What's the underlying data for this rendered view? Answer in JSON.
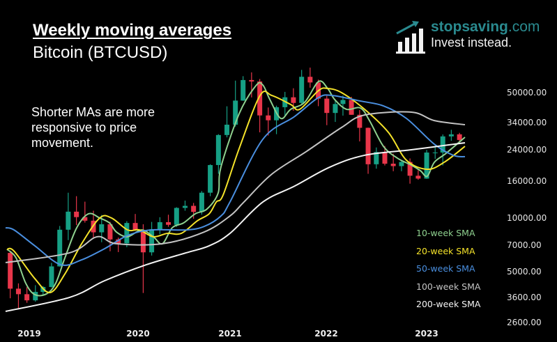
{
  "header": {
    "title": "Weekly moving averages",
    "subtitle": "Bitcoin (BTCUSD)",
    "note": "Shorter MAs are more responsive to price movement."
  },
  "logo": {
    "brand": "stopsaving",
    "domain": ".com",
    "tagline": "Invest instead.",
    "icon": "bar-chart-arrow-icon",
    "color": "#2a8a8f"
  },
  "chart_data": {
    "type": "candlestick+line",
    "title": "Weekly moving averages",
    "yscale": "log",
    "ylim": [
      2300,
      75000
    ],
    "xlim": [
      "2018-10-29",
      "2023-06-04"
    ],
    "y_ticks": [
      "50000.00",
      "34000.00",
      "24000.00",
      "16000.00",
      "10000.00",
      "7000.00",
      "5000.00",
      "3600.00",
      "2600.00"
    ],
    "x_ticks": [
      "2019",
      "2020",
      "2021",
      "2022",
      "2023"
    ],
    "grid": false,
    "legend_position": "bottom-right",
    "colors": {
      "up": "#16a085",
      "down": "#e8364a"
    },
    "candles": [
      [
        "2018-11-15",
        6365,
        6550,
        3550,
        4017
      ],
      [
        "2018-12-15",
        4017,
        4300,
        3130,
        3742
      ],
      [
        "2019-01-15",
        3742,
        4100,
        3350,
        3457
      ],
      [
        "2019-02-15",
        3457,
        4200,
        3400,
        3854
      ],
      [
        "2019-03-15",
        3854,
        4150,
        3700,
        4105
      ],
      [
        "2019-04-15",
        4105,
        5600,
        4080,
        5350
      ],
      [
        "2019-05-15",
        5350,
        9000,
        5330,
        8574
      ],
      [
        "2019-06-15",
        8574,
        13800,
        7500,
        10817
      ],
      [
        "2019-07-15",
        10817,
        13200,
        9100,
        10085
      ],
      [
        "2019-08-15",
        10085,
        12300,
        9400,
        9630
      ],
      [
        "2019-09-15",
        9630,
        10950,
        7700,
        8293
      ],
      [
        "2019-10-15",
        8293,
        10370,
        7300,
        9199
      ],
      [
        "2019-11-15",
        9199,
        9500,
        6500,
        7569
      ],
      [
        "2019-12-15",
        7569,
        7750,
        6430,
        7193
      ],
      [
        "2020-01-15",
        7193,
        9570,
        6850,
        9350
      ],
      [
        "2020-02-15",
        9350,
        10500,
        8450,
        8543
      ],
      [
        "2020-03-15",
        8543,
        9200,
        3800,
        6410
      ],
      [
        "2020-04-15",
        6410,
        9480,
        6150,
        8624
      ],
      [
        "2020-05-15",
        8624,
        10070,
        8100,
        9446
      ],
      [
        "2020-06-15",
        9446,
        10400,
        8900,
        9135
      ],
      [
        "2020-07-15",
        9135,
        11450,
        8900,
        11351
      ],
      [
        "2020-08-15",
        11351,
        12470,
        10950,
        11655
      ],
      [
        "2020-09-15",
        11655,
        12100,
        9880,
        10779
      ],
      [
        "2020-10-15",
        10779,
        14100,
        10400,
        13805
      ],
      [
        "2020-11-15",
        13805,
        19900,
        13200,
        19700
      ],
      [
        "2020-12-15",
        19700,
        29300,
        17600,
        28990
      ],
      [
        "2021-01-15",
        28990,
        41950,
        28130,
        33110
      ],
      [
        "2021-02-15",
        33110,
        58350,
        32300,
        45140
      ],
      [
        "2021-03-15",
        45140,
        61800,
        45000,
        58800
      ],
      [
        "2021-04-15",
        58800,
        64900,
        47000,
        57700
      ],
      [
        "2021-05-15",
        57700,
        59600,
        30000,
        37300
      ],
      [
        "2021-06-15",
        37300,
        41300,
        28800,
        35040
      ],
      [
        "2021-07-15",
        35040,
        42300,
        29300,
        41460
      ],
      [
        "2021-08-15",
        41460,
        50500,
        37300,
        47100
      ],
      [
        "2021-09-15",
        47100,
        52900,
        39600,
        43800
      ],
      [
        "2021-10-15",
        43800,
        67000,
        43300,
        61300
      ],
      [
        "2021-11-15",
        61300,
        69000,
        53300,
        57000
      ],
      [
        "2021-12-15",
        57000,
        59100,
        42000,
        46300
      ],
      [
        "2022-01-15",
        46300,
        48000,
        32900,
        38500
      ],
      [
        "2022-02-15",
        38500,
        45800,
        34300,
        43200
      ],
      [
        "2022-03-15",
        43200,
        48200,
        37200,
        45500
      ],
      [
        "2022-04-15",
        45500,
        47400,
        37600,
        37600
      ],
      [
        "2022-05-15",
        37600,
        40000,
        26700,
        31800
      ],
      [
        "2022-06-15",
        31800,
        31900,
        17600,
        19900
      ],
      [
        "2022-07-15",
        19900,
        24700,
        18800,
        23300
      ],
      [
        "2022-08-15",
        23300,
        25200,
        19600,
        20050
      ],
      [
        "2022-09-15",
        20050,
        22800,
        18200,
        19430
      ],
      [
        "2022-10-15",
        19430,
        20950,
        18200,
        20500
      ],
      [
        "2022-11-15",
        20500,
        21450,
        15500,
        17170
      ],
      [
        "2022-12-15",
        17170,
        18400,
        16300,
        16550
      ],
      [
        "2023-01-15",
        16550,
        23950,
        16500,
        23140
      ],
      [
        "2023-02-15",
        23140,
        25250,
        21350,
        23150
      ],
      [
        "2023-03-15",
        23150,
        29200,
        19600,
        28480
      ],
      [
        "2023-04-15",
        28480,
        31000,
        26900,
        29250
      ],
      [
        "2023-05-15",
        29250,
        29800,
        25800,
        27200
      ]
    ],
    "series": [
      {
        "name": "10-week SMA",
        "color": "#8fd18f",
        "points": [
          [
            "2018-11-03",
            6670
          ],
          [
            "2018-12-06",
            5980
          ],
          [
            "2019-01-11",
            4300
          ],
          [
            "2019-02-13",
            3720
          ],
          [
            "2019-03-28",
            3760
          ],
          [
            "2019-04-30",
            4300
          ],
          [
            "2019-06-03",
            5980
          ],
          [
            "2019-07-16",
            8790
          ],
          [
            "2019-08-28",
            10520
          ],
          [
            "2019-10-08",
            9970
          ],
          [
            "2019-11-13",
            9350
          ],
          [
            "2019-12-08",
            8330
          ],
          [
            "2020-01-18",
            7830
          ],
          [
            "2020-03-09",
            8550
          ],
          [
            "2020-04-21",
            7830
          ],
          [
            "2020-05-24",
            7160
          ],
          [
            "2020-06-29",
            8790
          ],
          [
            "2020-08-09",
            9350
          ],
          [
            "2020-09-21",
            10520
          ],
          [
            "2020-11-03",
            11190
          ],
          [
            "2020-12-14",
            13760
          ],
          [
            "2020-12-24",
            19180
          ],
          [
            "2021-03-01",
            38220
          ],
          [
            "2021-05-01",
            54700
          ],
          [
            "2021-05-26",
            55200
          ],
          [
            "2021-06-21",
            45730
          ],
          [
            "2021-07-31",
            35890
          ],
          [
            "2021-09-05",
            40360
          ],
          [
            "2021-10-26",
            44150
          ],
          [
            "2021-12-16",
            57700
          ],
          [
            "2022-01-18",
            52770
          ],
          [
            "2022-02-13",
            45730
          ],
          [
            "2022-03-28",
            40360
          ],
          [
            "2022-05-18",
            41020
          ],
          [
            "2022-06-20",
            34900
          ],
          [
            "2022-08-10",
            25060
          ],
          [
            "2022-09-30",
            21530
          ],
          [
            "2022-11-20",
            19680
          ],
          [
            "2022-12-23",
            18330
          ],
          [
            "2023-01-17",
            17060
          ],
          [
            "2023-02-12",
            20420
          ],
          [
            "2023-03-27",
            22920
          ],
          [
            "2023-06-04",
            28180
          ]
        ]
      },
      {
        "name": "20-week SMA",
        "color": "#f5e32a",
        "points": [
          [
            "2018-11-03",
            6670
          ],
          [
            "2018-11-29",
            6510
          ],
          [
            "2019-02-13",
            4570
          ],
          [
            "2019-04-10",
            3820
          ],
          [
            "2019-06-03",
            4860
          ],
          [
            "2019-08-03",
            7160
          ],
          [
            "2019-10-08",
            9970
          ],
          [
            "2019-11-20",
            9970
          ],
          [
            "2020-01-18",
            8550
          ],
          [
            "2020-03-01",
            8550
          ],
          [
            "2020-04-21",
            7830
          ],
          [
            "2020-06-11",
            8180
          ],
          [
            "2020-08-01",
            8180
          ],
          [
            "2020-09-29",
            9620
          ],
          [
            "2020-11-11",
            10520
          ],
          [
            "2020-12-07",
            12240
          ],
          [
            "2021-01-01",
            13400
          ],
          [
            "2021-03-01",
            24430
          ],
          [
            "2021-05-16",
            48200
          ],
          [
            "2021-06-28",
            48200
          ],
          [
            "2021-09-05",
            42950
          ],
          [
            "2021-10-08",
            40360
          ],
          [
            "2021-12-16",
            51400
          ],
          [
            "2022-01-18",
            52770
          ],
          [
            "2022-03-10",
            50000
          ],
          [
            "2022-06-02",
            40360
          ],
          [
            "2022-08-28",
            30000
          ],
          [
            "2022-11-02",
            20970
          ],
          [
            "2023-01-17",
            18660
          ],
          [
            "2023-03-20",
            20420
          ],
          [
            "2023-06-04",
            25060
          ]
        ]
      },
      {
        "name": "50-week SMA",
        "color": "#4a8fe0",
        "points": [
          [
            "2018-10-29",
            8790
          ],
          [
            "2018-11-29",
            8550
          ],
          [
            "2019-02-13",
            6970
          ],
          [
            "2019-05-18",
            5470
          ],
          [
            "2019-08-03",
            5820
          ],
          [
            "2019-10-26",
            6720
          ],
          [
            "2020-01-18",
            7960
          ],
          [
            "2020-04-13",
            8550
          ],
          [
            "2020-08-19",
            8550
          ],
          [
            "2020-10-24",
            8950
          ],
          [
            "2020-12-24",
            10230
          ],
          [
            "2021-01-26",
            12240
          ],
          [
            "2021-05-26",
            27420
          ],
          [
            "2021-09-20",
            36860
          ],
          [
            "2021-12-16",
            46970
          ],
          [
            "2022-02-05",
            48200
          ],
          [
            "2022-05-18",
            44870
          ],
          [
            "2022-08-10",
            42170
          ],
          [
            "2022-11-02",
            35890
          ],
          [
            "2023-02-12",
            25760
          ],
          [
            "2023-04-22",
            22340
          ],
          [
            "2023-06-04",
            21930
          ]
        ]
      },
      {
        "name": "100-week SMA",
        "color": "#c4c4c4",
        "points": [
          [
            "2018-10-29",
            5620
          ],
          [
            "2019-06-20",
            6370
          ],
          [
            "2019-09-28",
            7830
          ],
          [
            "2019-12-08",
            7160
          ],
          [
            "2020-05-24",
            7160
          ],
          [
            "2020-10-24",
            8330
          ],
          [
            "2021-01-26",
            10230
          ],
          [
            "2021-03-18",
            12240
          ],
          [
            "2021-06-28",
            17530
          ],
          [
            "2021-11-03",
            23550
          ],
          [
            "2022-03-10",
            31950
          ],
          [
            "2022-06-02",
            37500
          ],
          [
            "2022-11-20",
            38900
          ],
          [
            "2023-02-12",
            34900
          ],
          [
            "2023-06-04",
            33100
          ]
        ]
      },
      {
        "name": "200-week SMA",
        "color": "#f4f4f4",
        "points": [
          [
            "2018-10-29",
            3000
          ],
          [
            "2019-06-20",
            3590
          ],
          [
            "2019-10-26",
            4450
          ],
          [
            "2020-03-27",
            5470
          ],
          [
            "2020-08-19",
            6370
          ],
          [
            "2020-11-11",
            6970
          ],
          [
            "2021-01-26",
            8180
          ],
          [
            "2021-05-26",
            12240
          ],
          [
            "2021-09-20",
            15050
          ],
          [
            "2022-01-26",
            19180
          ],
          [
            "2022-06-02",
            22340
          ],
          [
            "2022-11-20",
            23990
          ],
          [
            "2023-06-04",
            26240
          ]
        ]
      }
    ]
  }
}
